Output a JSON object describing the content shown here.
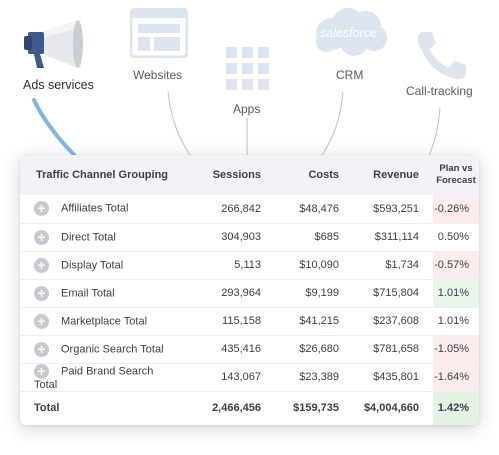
{
  "sources": [
    {
      "key": "ads",
      "label": "Ads services",
      "icon": "megaphone-icon"
    },
    {
      "key": "websites",
      "label": "Websites",
      "icon": "browser-window-icon"
    },
    {
      "key": "apps",
      "label": "Apps",
      "icon": "app-grid-icon"
    },
    {
      "key": "crm",
      "label": "CRM",
      "icon": "salesforce-cloud-icon",
      "logo_text": "salesforce"
    },
    {
      "key": "call",
      "label": "Call-tracking",
      "icon": "phone-icon"
    }
  ],
  "table": {
    "headers": {
      "name": "Traffic Channel Grouping",
      "sessions": "Sessions",
      "costs": "Costs",
      "revenue": "Revenue",
      "plan_line1": "Plan vs",
      "plan_line2": "Forecast"
    },
    "rows": [
      {
        "name": "Affiliates Total",
        "sessions": "266,842",
        "costs": "$48,476",
        "revenue": "$593,251",
        "plan": "-0.26%"
      },
      {
        "name": "Direct Total",
        "sessions": "304,903",
        "costs": "$685",
        "revenue": "$311,114",
        "plan": "0.50%"
      },
      {
        "name": "Display Total",
        "sessions": "5,113",
        "costs": "$10,090",
        "revenue": "$1,734",
        "plan": "-0.57%"
      },
      {
        "name": "Email Total",
        "sessions": "293,964",
        "costs": "$9,199",
        "revenue": "$715,804",
        "plan": "1.01%"
      },
      {
        "name": "Marketplace Total",
        "sessions": "115,158",
        "costs": "$41,215",
        "revenue": "$237,608",
        "plan": "1.01%"
      },
      {
        "name": "Organic Search Total",
        "sessions": "435,416",
        "costs": "$26,680",
        "revenue": "$781,658",
        "plan": "-1.05%"
      },
      {
        "name": "Paid Brand Search Total",
        "sessions": "143,067",
        "costs": "$23,389",
        "revenue": "$435,801",
        "plan": "-1.64%"
      }
    ],
    "total": {
      "name": "Total",
      "sessions": "2,466,456",
      "costs": "$159,735",
      "revenue": "$4,004,660",
      "plan": "1.42%"
    }
  },
  "colors": {
    "negative_bg": "#fcecec",
    "positive_bg": "#e8f5e8",
    "icon_light": "#dbe4ef",
    "accent_line": "#7fb6e8"
  }
}
